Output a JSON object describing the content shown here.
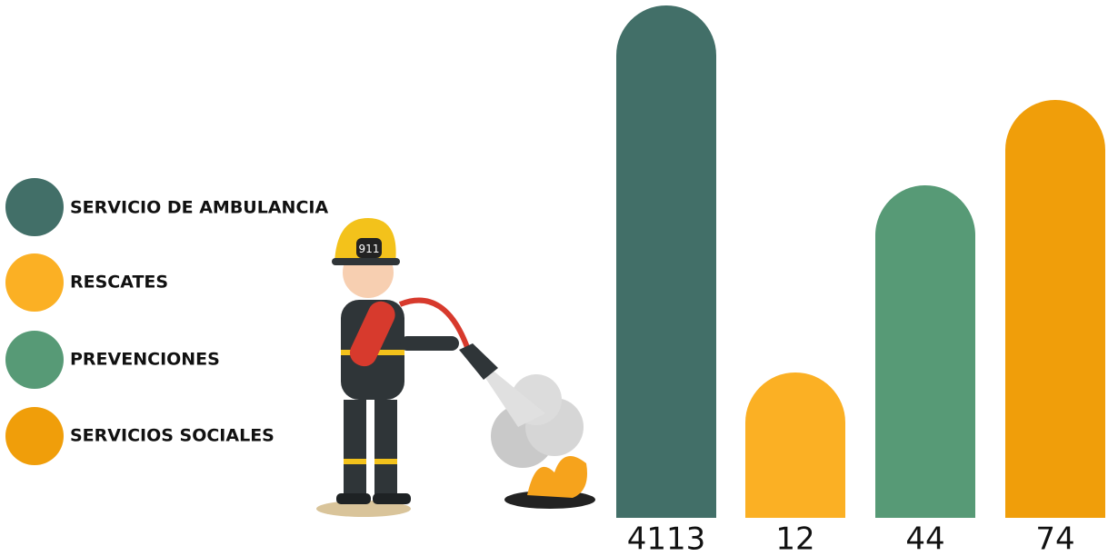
{
  "legend": [
    {
      "label": "SERVICIO DE AMBULANCIA"
    },
    {
      "label": "RESCATES"
    },
    {
      "label": "PREVENCIONES"
    },
    {
      "label": "SERVICIOS SOCIALES"
    }
  ],
  "bars": [
    {
      "value": 4113
    },
    {
      "value": 12
    },
    {
      "value": 44
    },
    {
      "value": 74
    }
  ]
}
